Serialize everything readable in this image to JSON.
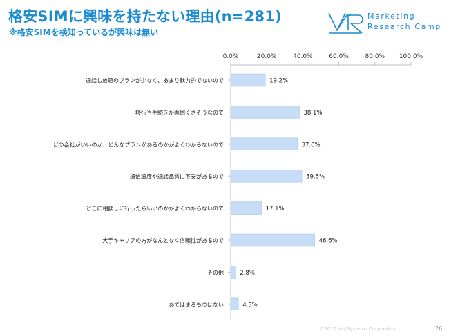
{
  "page": {
    "title": "格安SIMに興味を持たない理由(n=281)",
    "subtitle": "※格安SIMを検知っているが興味は無い",
    "logo_line1": "Marketing",
    "logo_line2": "Research Camp",
    "copyright": "©2017 JustSystems Corporation",
    "page_number": "26"
  },
  "colors": {
    "accent": "#1b8bd0",
    "bar_fill": "#c6dcf7",
    "bar_stroke": "#a9c6ec"
  },
  "chart_data": {
    "type": "bar",
    "orientation": "horizontal",
    "title": "",
    "xlabel": "",
    "ylabel": "",
    "xlim": [
      0,
      100
    ],
    "x_ticks": [
      0,
      20,
      40,
      60,
      80,
      100
    ],
    "x_tick_labels": [
      "0.0%",
      "20.0%",
      "40.0%",
      "60.0%",
      "80.0%",
      "100.0%"
    ],
    "x_axis_position": "top",
    "grid": false,
    "categories": [
      "通話し放題のプランが少なく、あまり魅力的でないので",
      "移行や手続きが面倒くさそうなので",
      "どの会社がいいのか、どんなプランがあるのかがよくわからないので",
      "通信速度や通話品質に不安があるので",
      "どこに相談しに行ったらいいのかがよくわからないので",
      "大手キャリアの方がなんとなく信頼性があるので",
      "その他",
      "あてはまるものはない"
    ],
    "values": [
      19.2,
      38.1,
      37.0,
      39.5,
      17.1,
      46.6,
      2.8,
      4.3
    ],
    "value_labels": [
      "19.2%",
      "38.1%",
      "37.0%",
      "39.5%",
      "17.1%",
      "46.6%",
      "2.8%",
      "4.3%"
    ]
  }
}
